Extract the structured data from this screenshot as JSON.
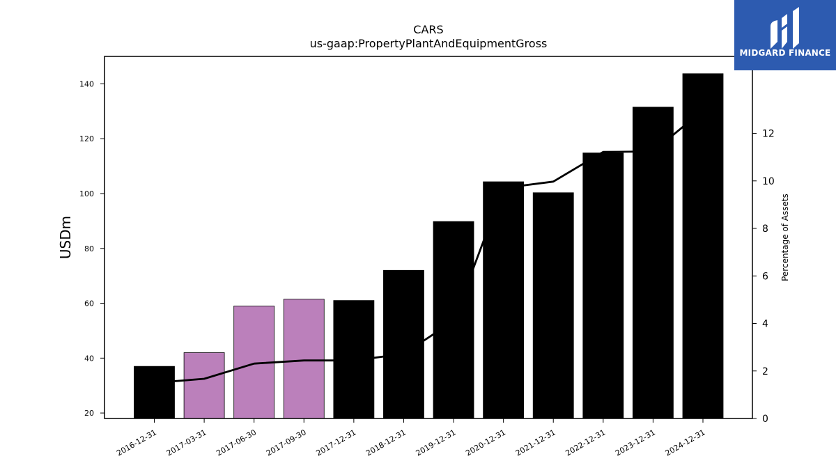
{
  "chart_data": {
    "type": "bar",
    "title": "CARS",
    "subtitle": "us-gaap:PropertyPlantAndEquipmentGross",
    "ylabel": "USDm",
    "y2label": "Percentage of Assets",
    "ylim": [
      18,
      150
    ],
    "y2lim": [
      0,
      15.24
    ],
    "yticks": [
      20,
      40,
      60,
      80,
      100,
      120,
      140
    ],
    "y2ticks": [
      0,
      2,
      4,
      6,
      8,
      10,
      12
    ],
    "categories": [
      "2016-12-31",
      "2017-03-31",
      "2017-06-30",
      "2017-09-30",
      "2017-12-31",
      "2018-12-31",
      "2019-12-31",
      "2020-12-31",
      "2021-12-31",
      "2022-12-31",
      "2023-12-31",
      "2024-12-31"
    ],
    "series": [
      {
        "type": "bar",
        "values": [
          37,
          42,
          59,
          61.5,
          61,
          72,
          89.8,
          104.3,
          100.3,
          114.8,
          131.5,
          143.7
        ],
        "colors": [
          "#000000",
          "#bb80bb",
          "#bb80bb",
          "#bb80bb",
          "#000000",
          "#000000",
          "#000000",
          "#000000",
          "#000000",
          "#000000",
          "#000000",
          "#000000"
        ]
      },
      {
        "type": "line",
        "axis": "right",
        "color": "#000000",
        "values": [
          1.5,
          1.67,
          2.31,
          2.44,
          2.44,
          2.72,
          4.1,
          9.7,
          9.97,
          11.22,
          11.24,
          12.97
        ]
      }
    ],
    "grid": false,
    "legend": "none"
  },
  "logo": {
    "text": "MIDGARD FINANCE",
    "bg_color": "#2d5bb0"
  }
}
